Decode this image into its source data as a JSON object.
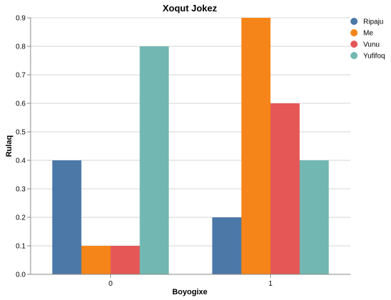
{
  "chart_data": {
    "type": "bar",
    "title": "Xoqut Jokez",
    "xlabel": "Boyogixe",
    "ylabel": "Rulaq",
    "categories": [
      "0",
      "1"
    ],
    "series": [
      {
        "name": "Ripaju",
        "color": "#4c78a8",
        "values": [
          0.4,
          0.2
        ]
      },
      {
        "name": "Me",
        "color": "#f58518",
        "values": [
          0.1,
          0.9
        ]
      },
      {
        "name": "Vunu",
        "color": "#e45756",
        "values": [
          0.1,
          0.6
        ]
      },
      {
        "name": "Yufifoq",
        "color": "#72b7b2",
        "values": [
          0.8,
          0.4
        ]
      }
    ],
    "ylim": [
      0,
      0.9
    ],
    "yticks": [
      "0.0",
      "0.1",
      "0.2",
      "0.3",
      "0.4",
      "0.5",
      "0.6",
      "0.7",
      "0.8",
      "0.9"
    ],
    "grid": true,
    "legend_position": "top-right"
  }
}
